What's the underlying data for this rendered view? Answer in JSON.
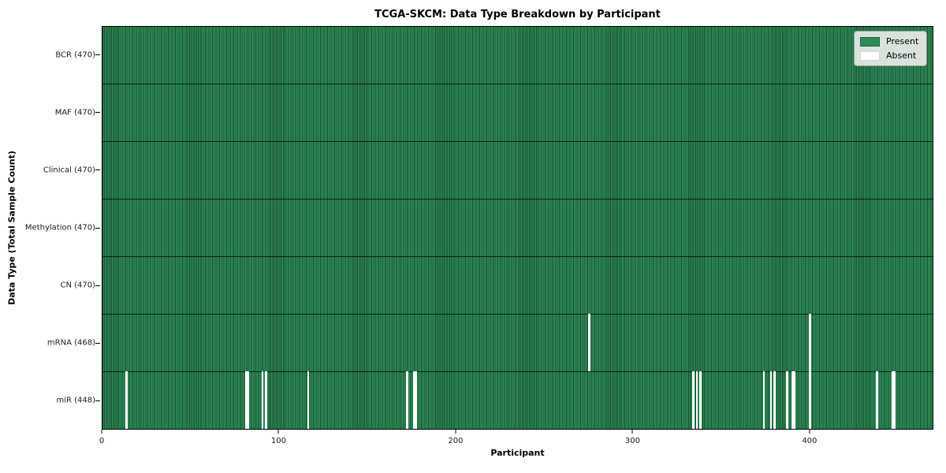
{
  "chart_data": {
    "type": "heatmap",
    "title": "TCGA-SKCM: Data Type Breakdown by Participant",
    "xlabel": "Participant",
    "ylabel": "Data Type (Total Sample Count)",
    "x_range": [
      0,
      470
    ],
    "x_ticks": [
      0,
      100,
      200,
      300,
      400
    ],
    "grid": false,
    "legend_position": "upper right",
    "rows": [
      {
        "label": "BCR (470)",
        "data_type": "BCR",
        "total": 470,
        "absent_participants": []
      },
      {
        "label": "MAF (470)",
        "data_type": "MAF",
        "total": 470,
        "absent_participants": []
      },
      {
        "label": "Clinical (470)",
        "data_type": "Clinical",
        "total": 470,
        "absent_participants": []
      },
      {
        "label": "Methylation (470)",
        "data_type": "Methylation",
        "total": 470,
        "absent_participants": []
      },
      {
        "label": "CN (470)",
        "data_type": "CN",
        "total": 470,
        "absent_participants": []
      },
      {
        "label": "mRNA (468)",
        "data_type": "mRNA",
        "total": 468,
        "absent_participants": [
          275,
          400
        ]
      },
      {
        "label": "miR (448)",
        "data_type": "miR",
        "total": 448,
        "absent_participants": [
          13,
          81,
          82,
          90,
          92,
          116,
          172,
          176,
          177,
          334,
          336,
          338,
          374,
          378,
          380,
          387,
          390,
          391,
          400,
          438,
          447,
          448
        ]
      }
    ],
    "legend": [
      {
        "label": "Present",
        "color": "#2e8b57"
      },
      {
        "label": "Absent",
        "color": "#ffffff"
      }
    ],
    "colors": {
      "present": "#2e8b57",
      "absent": "#ffffff",
      "cell_edge": "#17502f",
      "row_separator": "#000000",
      "plot_border": "#000000"
    }
  }
}
